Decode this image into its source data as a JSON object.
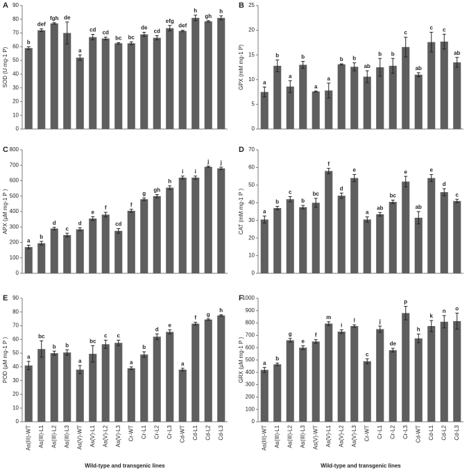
{
  "chart_data": [
    {
      "type": "bar",
      "panel": "A",
      "ylabel": "SOD (U mg-1 P)",
      "color": "#5e5e5e",
      "values": [
        59,
        72,
        77,
        70,
        52,
        67,
        66,
        62.5,
        62.5,
        69,
        66.5,
        73.5,
        71.5,
        81,
        78.5,
        81
      ],
      "errors": [
        1,
        1,
        0.5,
        8,
        2,
        2,
        1,
        0.5,
        1,
        1.5,
        1.5,
        2,
        0.5,
        2,
        0.5,
        1.5
      ],
      "letters": [
        "b",
        "def",
        "fgh",
        "de",
        "a",
        "cd",
        "cd",
        "bc",
        "bc",
        "de",
        "cd",
        "efg",
        "def",
        "h",
        "gh",
        "h"
      ],
      "ylim": [
        0,
        90
      ],
      "yticks": [
        0,
        10,
        20,
        30,
        40,
        50,
        60,
        70,
        80,
        90
      ]
    },
    {
      "type": "bar",
      "panel": "B",
      "ylabel": "GPX (mM mg-1 P)",
      "color": "#5e5e5e",
      "values": [
        7.5,
        12.8,
        8.6,
        13,
        7.6,
        7.8,
        13.1,
        12.6,
        10.6,
        12.5,
        12.8,
        16.6,
        11,
        17.6,
        17.7,
        13.5
      ],
      "errors": [
        1,
        1.2,
        1.2,
        0.7,
        0.1,
        1.5,
        0.1,
        0.8,
        1.2,
        1.8,
        1.5,
        2,
        0.4,
        2,
        1.5,
        1
      ],
      "letters": [
        "a",
        "b",
        "a",
        "b",
        "a",
        "a",
        "b",
        "b",
        "ab",
        "b",
        "b",
        "c",
        "ab",
        "c",
        "c",
        "ab"
      ],
      "ylim": [
        0,
        25
      ],
      "yticks": [
        0,
        5,
        10,
        15,
        20,
        25
      ]
    },
    {
      "type": "bar",
      "panel": "C",
      "ylabel": "APX (µM mg-1 P )",
      "color": "#5e5e5e",
      "values": [
        170,
        195,
        290,
        248,
        285,
        355,
        380,
        275,
        405,
        480,
        500,
        555,
        620,
        620,
        690,
        680
      ],
      "errors": [
        12,
        12,
        8,
        12,
        10,
        12,
        15,
        15,
        10,
        8,
        10,
        12,
        10,
        10,
        5,
        8
      ],
      "letters": [
        "a",
        "b",
        "d",
        "c",
        "d",
        "e",
        "f",
        "cd",
        "f",
        "g",
        "gh",
        "h",
        "i",
        "i",
        "j",
        "j"
      ],
      "ylim": [
        0,
        800
      ],
      "yticks": [
        0,
        100,
        200,
        300,
        400,
        500,
        600,
        700,
        800
      ]
    },
    {
      "type": "bar",
      "panel": "D",
      "ylabel": "CAT (mM mg-1 P )",
      "color": "#5e5e5e",
      "values": [
        30.5,
        37,
        42,
        37.5,
        40,
        58,
        44,
        54,
        30.5,
        33.5,
        40.5,
        52,
        31.5,
        54,
        46,
        41
      ],
      "errors": [
        2,
        1,
        1.5,
        1,
        2.5,
        1.5,
        1.5,
        2,
        1.5,
        1,
        1,
        3,
        3.5,
        2,
        2,
        1
      ],
      "letters": [
        "a",
        "b",
        "c",
        "b",
        "bc",
        "f",
        "d",
        "e",
        "a",
        "ab",
        "bc",
        "e",
        "ab",
        "e",
        "d",
        "c"
      ],
      "ylim": [
        0,
        70
      ],
      "yticks": [
        0,
        10,
        20,
        30,
        40,
        50,
        60,
        70
      ]
    },
    {
      "type": "bar",
      "panel": "E",
      "ylabel": "POD (µM mg-1 P )",
      "xlabel": "Wild-type and transgenic lines",
      "color": "#5e5e5e",
      "categories": [
        "As(III)-WT",
        "As(III)-L1",
        "As(III)-L2",
        "As(III)-L3",
        "As(V)-WT",
        "As(V)-L1",
        "As(V)-L2",
        "As(V)-L3",
        "Cr-WT",
        "Cr-L1",
        "Cr-L2",
        "Cr-L3",
        "Cd-WT",
        "Cd-L1",
        "Cd-L2",
        "Cd-L3"
      ],
      "values": [
        41,
        53,
        50,
        50.5,
        38,
        49.5,
        56.5,
        57.5,
        39,
        49,
        62,
        65.5,
        38,
        71.5,
        74.5,
        77.5
      ],
      "errors": [
        3,
        6,
        1.5,
        2,
        3,
        6,
        3,
        2,
        1,
        2,
        2,
        1.5,
        1,
        1,
        0.5,
        0.5
      ],
      "letters": [
        "a",
        "bc",
        "b",
        "b",
        "a",
        "bc",
        "c",
        "c",
        "a",
        "b",
        "d",
        "e",
        "a",
        "f",
        "g",
        "h"
      ],
      "ylim": [
        0,
        90
      ],
      "yticks": [
        0,
        10,
        20,
        30,
        40,
        50,
        60,
        70,
        80,
        90
      ]
    },
    {
      "type": "bar",
      "panel": "F",
      "ylabel": "GRX (µM mg-1 P )",
      "xlabel": "Wild-type and transgenic lines",
      "color": "#5e5e5e",
      "categories": [
        "As(III)-WT",
        "As(III)-L1",
        "As(III)-L2",
        "As(III)-L3",
        "As(V)-WT",
        "As(V)-L1",
        "As(V)-L2",
        "As(V)-L3",
        "Cr-WT",
        "Cr-L1",
        "Cr-L2",
        "Cr-L3",
        "Cd-WT",
        "Cd-L1",
        "Cd-L2",
        "Cd-L3"
      ],
      "values": [
        420,
        465,
        660,
        600,
        650,
        795,
        730,
        775,
        490,
        750,
        580,
        880,
        675,
        775,
        810,
        815
      ],
      "errors": [
        20,
        10,
        15,
        15,
        15,
        15,
        15,
        10,
        20,
        25,
        15,
        55,
        35,
        45,
        50,
        65
      ],
      "letters": [
        "a",
        "b",
        "g",
        "e",
        "f",
        "m",
        "i",
        "l",
        "c",
        "j",
        "de",
        "p",
        "h",
        "k",
        "n",
        "o"
      ],
      "ylim": [
        0,
        1000
      ],
      "yticks": [
        0,
        100,
        200,
        300,
        400,
        500,
        600,
        700,
        800,
        900,
        1000
      ]
    }
  ]
}
